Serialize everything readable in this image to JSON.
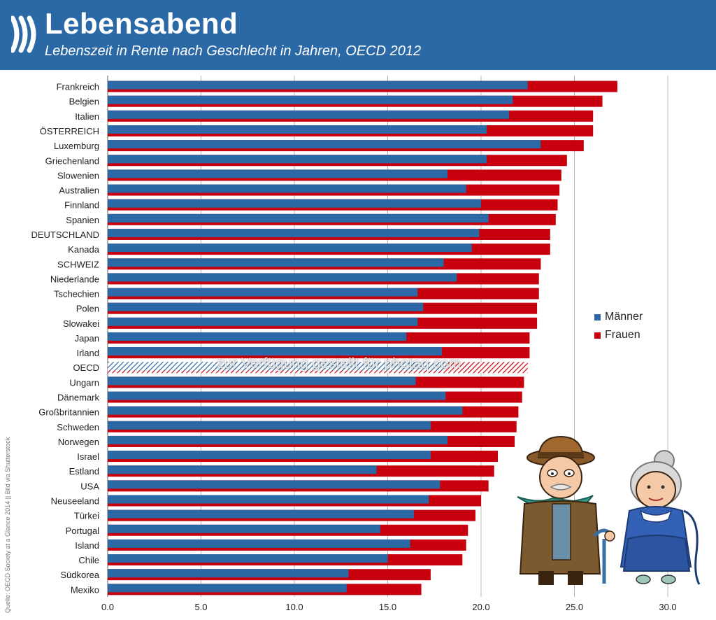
{
  "header": {
    "title": "Lebensabend",
    "subtitle": "Lebenszeit in Rente nach Geschlecht in Jahren, OECD 2012"
  },
  "source": "Quelle: OECD Society at a Glance 2014 || Bild via Shutterstock",
  "watermark": "zur Verfügung gestellt für photaq.com",
  "chart_data": {
    "type": "bar",
    "orientation": "horizontal",
    "title": "Lebensabend",
    "subtitle": "Lebenszeit in Rente nach Geschlecht in Jahren, OECD 2012",
    "categories": [
      "Frankreich",
      "Belgien",
      "Italien",
      "ÖSTERREICH",
      "Luxemburg",
      "Griechenland",
      "Slowenien",
      "Australien",
      "Finnland",
      "Spanien",
      "DEUTSCHLAND",
      "Kanada",
      "SCHWEIZ",
      "Niederlande",
      "Tschechien",
      "Polen",
      "Slowakei",
      "Japan",
      "Irland",
      "OECD",
      "Ungarn",
      "Dänemark",
      "Großbritannien",
      "Schweden",
      "Norwegen",
      "Israel",
      "Estland",
      "USA",
      "Neuseeland",
      "Türkei",
      "Portugal",
      "Island",
      "Chile",
      "Südkorea",
      "Mexiko"
    ],
    "series": [
      {
        "name": "Männer",
        "color": "#2a69a6",
        "values": [
          22.5,
          21.7,
          21.5,
          20.3,
          23.2,
          20.3,
          18.2,
          19.2,
          20.0,
          20.4,
          19.9,
          19.5,
          18.0,
          18.7,
          16.6,
          16.9,
          16.6,
          16.0,
          17.9,
          18.1,
          16.5,
          18.1,
          19.0,
          17.3,
          18.2,
          17.3,
          14.4,
          17.8,
          17.2,
          16.4,
          14.6,
          16.2,
          15.0,
          12.9,
          12.8
        ]
      },
      {
        "name": "Frauen",
        "color": "#c8000e",
        "values": [
          27.3,
          26.5,
          26.0,
          26.0,
          25.5,
          24.6,
          24.3,
          24.2,
          24.1,
          24.0,
          23.7,
          23.7,
          23.2,
          23.1,
          23.1,
          23.0,
          23.0,
          22.6,
          22.6,
          22.5,
          22.3,
          22.2,
          22.0,
          21.9,
          21.8,
          20.9,
          20.7,
          20.4,
          20.0,
          19.7,
          19.3,
          19.2,
          19.0,
          17.3,
          16.8
        ]
      }
    ],
    "hatched_category": "OECD",
    "xlim": [
      0,
      30
    ],
    "xticks": [
      "0.0",
      "5.0",
      "10.0",
      "15.0",
      "20.0",
      "25.0",
      "30.0"
    ],
    "grid": true,
    "legend_position": "right"
  }
}
